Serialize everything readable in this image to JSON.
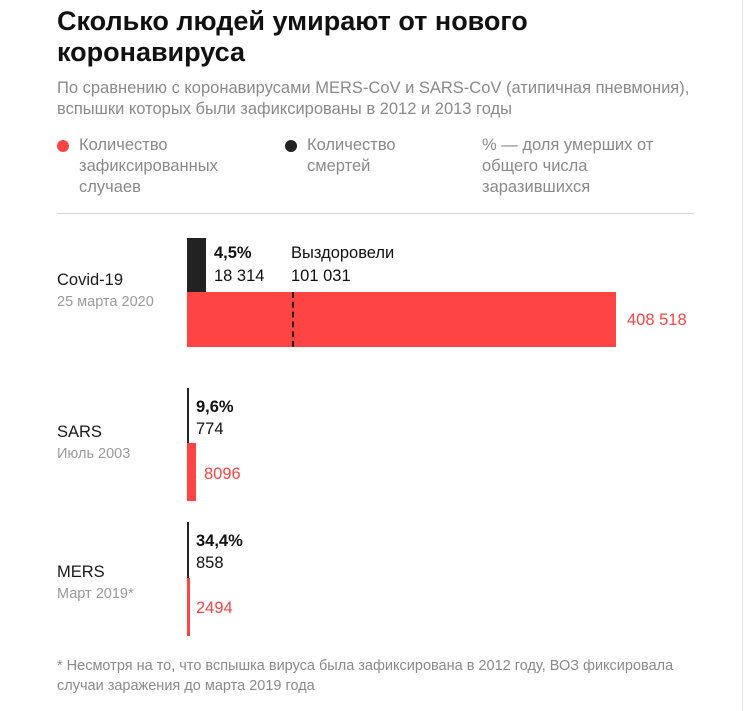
{
  "title": "Сколько людей умирают от нового коронавируса",
  "subtitle": "По сравнению с коронавирусами MERS-CoV и SARS-CoV (атипичная пневмония), вспышки которых были зафиксированы в 2012 и 2013 годы",
  "legend": {
    "cases": "Количество зафиксированных случаев",
    "deaths": "Количество смертей",
    "percent": "% — доля умерших от общего числа заразившихся"
  },
  "colors": {
    "cases": "#ff4444",
    "deaths": "#222222"
  },
  "footnote": "* Несмотря на то, что вспышка вируса была зафиксирована в 2012 году, ВОЗ фиксировала случаи заражения до марта 2019 года",
  "chart_data": {
    "type": "bar",
    "orientation": "horizontal",
    "categories": [
      "Covid-19",
      "SARS",
      "MERS"
    ],
    "dates": [
      "25 марта 2020",
      "Июль 2003",
      "Март 2019*"
    ],
    "series": [
      {
        "name": "Количество зафиксированных случаев",
        "values": [
          408518,
          8096,
          2494
        ],
        "labels": [
          "408 518",
          "8096",
          "2494"
        ]
      },
      {
        "name": "Количество смертей",
        "values": [
          18314,
          774,
          858
        ],
        "labels": [
          "18 314",
          "774",
          "858"
        ]
      }
    ],
    "death_rates": [
      "4,5%",
      "9,6%",
      "34,4%"
    ],
    "recovered": {
      "label": "Выздоровели",
      "value": 101031,
      "value_label": "101 031",
      "category": "Covid-19"
    }
  }
}
